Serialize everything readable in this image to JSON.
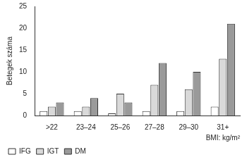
{
  "chart_data": {
    "type": "bar",
    "y_label": "Betegek száma",
    "x_label": "BMI: kg/m²",
    "categories": [
      ">22",
      "23–24",
      "25–26",
      "27–28",
      "29–30",
      "31+"
    ],
    "series": [
      {
        "name": "IFG",
        "color": "#ffffff",
        "values": [
          1,
          1,
          0.5,
          1,
          1,
          2
        ]
      },
      {
        "name": "IGT",
        "color": "#d9d9d9",
        "values": [
          2,
          2,
          5,
          7,
          6,
          13
        ]
      },
      {
        "name": "DM",
        "color": "#9a9a9a",
        "values": [
          3,
          4,
          3,
          12,
          10,
          21
        ]
      }
    ],
    "ylim": [
      0,
      25
    ],
    "yticks": [
      0,
      5,
      10,
      15,
      20,
      25
    ],
    "grid": false,
    "legend": "bottom-left"
  }
}
